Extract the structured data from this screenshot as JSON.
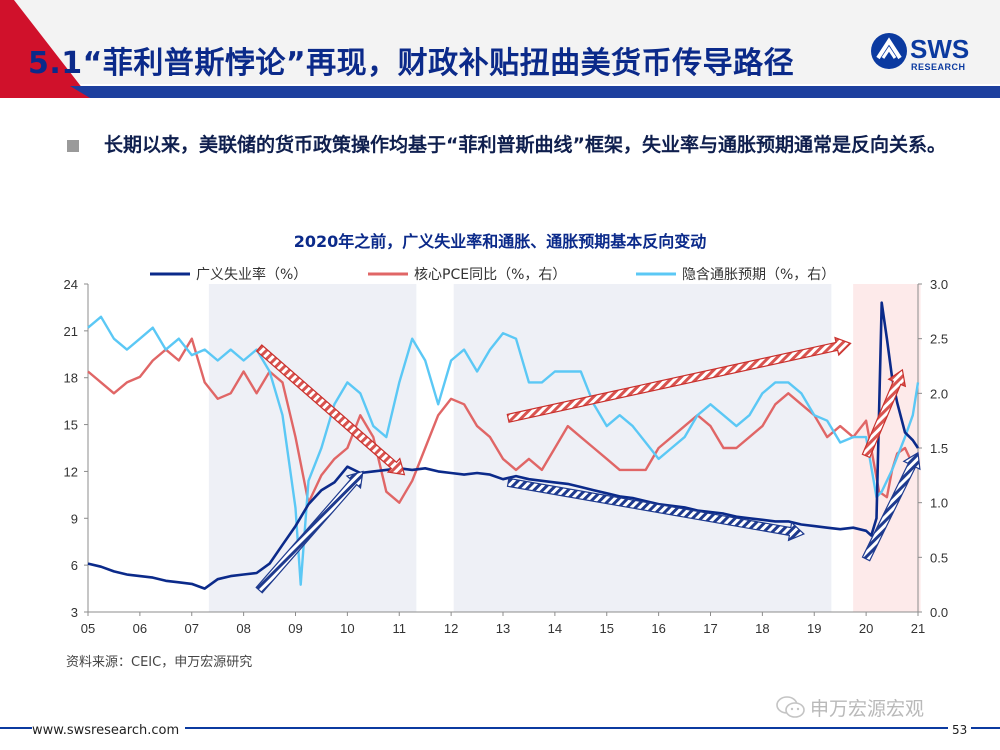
{
  "header": {
    "title": "5.1“菲利普斯悖论”再现，财政补贴扭曲美货币传导路径",
    "logo_word": "SWS",
    "logo_sub": "RESEARCH"
  },
  "bullet": {
    "text": "长期以来，美联储的货币政策操作均基于“菲利普斯曲线”框架，失业率与通胀预期通常是反向关系。"
  },
  "chart_data": {
    "type": "line",
    "title": "2020年之前，广义失业率和通胀、通胀预期基本反向变动",
    "x_ticks": [
      "05",
      "06",
      "07",
      "08",
      "09",
      "10",
      "11",
      "12",
      "13",
      "14",
      "15",
      "16",
      "17",
      "18",
      "19",
      "20",
      "21"
    ],
    "x_range": [
      2005,
      2021
    ],
    "y_left": {
      "ticks": [
        "24",
        "21",
        "18",
        "15",
        "12",
        "9",
        "6",
        "3"
      ],
      "range": [
        3,
        24
      ]
    },
    "y_right": {
      "ticks": [
        "3.0",
        "2.5",
        "2.0",
        "1.5",
        "1.0",
        "0.5",
        "0.0"
      ],
      "range": [
        0,
        3
      ]
    },
    "grid": false,
    "legend_position": "top",
    "series": [
      {
        "name": "广义失业率（%）",
        "axis": "left",
        "color": "#0b2a8a",
        "points": [
          [
            2005.0,
            6.1
          ],
          [
            2005.25,
            5.9
          ],
          [
            2005.5,
            5.6
          ],
          [
            2005.75,
            5.4
          ],
          [
            2006.0,
            5.3
          ],
          [
            2006.25,
            5.2
          ],
          [
            2006.5,
            5.0
          ],
          [
            2006.75,
            4.9
          ],
          [
            2007.0,
            4.8
          ],
          [
            2007.25,
            4.5
          ],
          [
            2007.5,
            5.1
          ],
          [
            2007.75,
            5.3
          ],
          [
            2008.0,
            5.4
          ],
          [
            2008.25,
            5.5
          ],
          [
            2008.5,
            6.1
          ],
          [
            2008.75,
            7.3
          ],
          [
            2009.0,
            8.5
          ],
          [
            2009.25,
            9.9
          ],
          [
            2009.5,
            10.8
          ],
          [
            2009.75,
            11.3
          ],
          [
            2010.0,
            12.3
          ],
          [
            2010.25,
            11.9
          ],
          [
            2010.5,
            12.0
          ],
          [
            2010.75,
            12.1
          ],
          [
            2011.0,
            12.2
          ],
          [
            2011.25,
            12.1
          ],
          [
            2011.5,
            12.2
          ],
          [
            2011.75,
            12.0
          ],
          [
            2012.0,
            11.9
          ],
          [
            2012.25,
            11.8
          ],
          [
            2012.5,
            11.9
          ],
          [
            2012.75,
            11.8
          ],
          [
            2013.0,
            11.5
          ],
          [
            2013.25,
            11.7
          ],
          [
            2013.5,
            11.5
          ],
          [
            2013.75,
            11.4
          ],
          [
            2014.0,
            11.3
          ],
          [
            2014.25,
            11.2
          ],
          [
            2014.5,
            11.0
          ],
          [
            2014.75,
            10.8
          ],
          [
            2015.0,
            10.6
          ],
          [
            2015.25,
            10.4
          ],
          [
            2015.5,
            10.3
          ],
          [
            2015.75,
            10.1
          ],
          [
            2016.0,
            9.9
          ],
          [
            2016.25,
            9.8
          ],
          [
            2016.5,
            9.7
          ],
          [
            2016.75,
            9.5
          ],
          [
            2017.0,
            9.4
          ],
          [
            2017.25,
            9.3
          ],
          [
            2017.5,
            9.1
          ],
          [
            2017.75,
            9.0
          ],
          [
            2018.0,
            8.9
          ],
          [
            2018.25,
            8.8
          ],
          [
            2018.5,
            8.8
          ],
          [
            2018.75,
            8.6
          ],
          [
            2019.0,
            8.5
          ],
          [
            2019.25,
            8.4
          ],
          [
            2019.5,
            8.3
          ],
          [
            2019.75,
            8.4
          ],
          [
            2020.0,
            8.2
          ],
          [
            2020.1,
            7.9
          ],
          [
            2020.2,
            9.0
          ],
          [
            2020.3,
            22.8
          ],
          [
            2020.4,
            20.5
          ],
          [
            2020.5,
            18.0
          ],
          [
            2020.6,
            16.4
          ],
          [
            2020.75,
            14.5
          ],
          [
            2020.9,
            14.0
          ],
          [
            2021.0,
            13.5
          ]
        ]
      },
      {
        "name": "核心PCE同比（%，右）",
        "axis": "right",
        "color": "#e06666",
        "points": [
          [
            2005.0,
            2.2
          ],
          [
            2005.25,
            2.1
          ],
          [
            2005.5,
            2.0
          ],
          [
            2005.75,
            2.1
          ],
          [
            2006.0,
            2.15
          ],
          [
            2006.25,
            2.3
          ],
          [
            2006.5,
            2.4
          ],
          [
            2006.75,
            2.3
          ],
          [
            2007.0,
            2.5
          ],
          [
            2007.25,
            2.1
          ],
          [
            2007.5,
            1.95
          ],
          [
            2007.75,
            2.0
          ],
          [
            2008.0,
            2.2
          ],
          [
            2008.25,
            2.0
          ],
          [
            2008.5,
            2.2
          ],
          [
            2008.75,
            2.1
          ],
          [
            2009.0,
            1.6
          ],
          [
            2009.25,
            1.0
          ],
          [
            2009.5,
            1.25
          ],
          [
            2009.75,
            1.4
          ],
          [
            2010.0,
            1.5
          ],
          [
            2010.25,
            1.8
          ],
          [
            2010.5,
            1.6
          ],
          [
            2010.75,
            1.1
          ],
          [
            2011.0,
            1.0
          ],
          [
            2011.25,
            1.2
          ],
          [
            2011.5,
            1.5
          ],
          [
            2011.75,
            1.8
          ],
          [
            2012.0,
            1.95
          ],
          [
            2012.25,
            1.9
          ],
          [
            2012.5,
            1.7
          ],
          [
            2012.75,
            1.6
          ],
          [
            2013.0,
            1.4
          ],
          [
            2013.25,
            1.3
          ],
          [
            2013.5,
            1.4
          ],
          [
            2013.75,
            1.3
          ],
          [
            2014.0,
            1.5
          ],
          [
            2014.25,
            1.7
          ],
          [
            2014.5,
            1.6
          ],
          [
            2014.75,
            1.5
          ],
          [
            2015.0,
            1.4
          ],
          [
            2015.25,
            1.3
          ],
          [
            2015.5,
            1.3
          ],
          [
            2015.75,
            1.3
          ],
          [
            2016.0,
            1.5
          ],
          [
            2016.25,
            1.6
          ],
          [
            2016.5,
            1.7
          ],
          [
            2016.75,
            1.8
          ],
          [
            2017.0,
            1.7
          ],
          [
            2017.25,
            1.5
          ],
          [
            2017.5,
            1.5
          ],
          [
            2017.75,
            1.6
          ],
          [
            2018.0,
            1.7
          ],
          [
            2018.25,
            1.9
          ],
          [
            2018.5,
            2.0
          ],
          [
            2018.75,
            1.9
          ],
          [
            2019.0,
            1.8
          ],
          [
            2019.25,
            1.6
          ],
          [
            2019.5,
            1.7
          ],
          [
            2019.75,
            1.6
          ],
          [
            2020.0,
            1.75
          ],
          [
            2020.25,
            1.1
          ],
          [
            2020.4,
            1.05
          ],
          [
            2020.5,
            1.3
          ],
          [
            2020.6,
            1.45
          ],
          [
            2020.75,
            1.5
          ],
          [
            2020.9,
            1.35
          ],
          [
            2021.0,
            1.45
          ]
        ]
      },
      {
        "name": "隐含通胀预期（%，右）",
        "axis": "right",
        "color": "#5bc8f5",
        "points": [
          [
            2005.0,
            2.6
          ],
          [
            2005.25,
            2.7
          ],
          [
            2005.5,
            2.5
          ],
          [
            2005.75,
            2.4
          ],
          [
            2006.0,
            2.5
          ],
          [
            2006.25,
            2.6
          ],
          [
            2006.5,
            2.4
          ],
          [
            2006.75,
            2.5
          ],
          [
            2007.0,
            2.35
          ],
          [
            2007.25,
            2.4
          ],
          [
            2007.5,
            2.3
          ],
          [
            2007.75,
            2.4
          ],
          [
            2008.0,
            2.3
          ],
          [
            2008.25,
            2.4
          ],
          [
            2008.5,
            2.2
          ],
          [
            2008.75,
            1.8
          ],
          [
            2009.0,
            0.95
          ],
          [
            2009.1,
            0.25
          ],
          [
            2009.25,
            1.2
          ],
          [
            2009.5,
            1.5
          ],
          [
            2009.75,
            1.9
          ],
          [
            2010.0,
            2.1
          ],
          [
            2010.25,
            2.0
          ],
          [
            2010.5,
            1.7
          ],
          [
            2010.75,
            1.6
          ],
          [
            2011.0,
            2.1
          ],
          [
            2011.25,
            2.5
          ],
          [
            2011.5,
            2.3
          ],
          [
            2011.75,
            1.9
          ],
          [
            2012.0,
            2.3
          ],
          [
            2012.25,
            2.4
          ],
          [
            2012.5,
            2.2
          ],
          [
            2012.75,
            2.4
          ],
          [
            2013.0,
            2.55
          ],
          [
            2013.25,
            2.5
          ],
          [
            2013.5,
            2.1
          ],
          [
            2013.75,
            2.1
          ],
          [
            2014.0,
            2.2
          ],
          [
            2014.25,
            2.2
          ],
          [
            2014.5,
            2.2
          ],
          [
            2014.75,
            1.9
          ],
          [
            2015.0,
            1.7
          ],
          [
            2015.25,
            1.8
          ],
          [
            2015.5,
            1.7
          ],
          [
            2015.75,
            1.55
          ],
          [
            2016.0,
            1.4
          ],
          [
            2016.25,
            1.5
          ],
          [
            2016.5,
            1.6
          ],
          [
            2016.75,
            1.8
          ],
          [
            2017.0,
            1.9
          ],
          [
            2017.25,
            1.8
          ],
          [
            2017.5,
            1.7
          ],
          [
            2017.75,
            1.8
          ],
          [
            2018.0,
            2.0
          ],
          [
            2018.25,
            2.1
          ],
          [
            2018.5,
            2.1
          ],
          [
            2018.75,
            2.0
          ],
          [
            2019.0,
            1.8
          ],
          [
            2019.25,
            1.75
          ],
          [
            2019.5,
            1.55
          ],
          [
            2019.75,
            1.6
          ],
          [
            2020.0,
            1.6
          ],
          [
            2020.2,
            1.05
          ],
          [
            2020.3,
            1.1
          ],
          [
            2020.5,
            1.3
          ],
          [
            2020.75,
            1.6
          ],
          [
            2020.9,
            1.8
          ],
          [
            2021.0,
            2.1
          ]
        ]
      }
    ],
    "shaded_periods": [
      {
        "from": 2007.33,
        "to": 2011.33,
        "color": "#eef0f6"
      },
      {
        "from": 2012.05,
        "to": 2019.33,
        "color": "#eef0f6"
      },
      {
        "from": 2019.75,
        "to": 2021.05,
        "color": "#fdeaea"
      }
    ],
    "trend_arrows": [
      {
        "from": [
          2008.3,
          19.9
        ],
        "to": [
          2011.1,
          11.8
        ],
        "axis": "left",
        "style": "red"
      },
      {
        "from": [
          2008.3,
          4.4
        ],
        "to": [
          2010.3,
          12.0
        ],
        "axis": "left",
        "style": "navy"
      },
      {
        "from": [
          2013.1,
          15.4
        ],
        "to": [
          2019.7,
          20.2
        ],
        "axis": "left",
        "style": "red"
      },
      {
        "from": [
          2013.1,
          11.3
        ],
        "to": [
          2018.8,
          8.0
        ],
        "axis": "left",
        "style": "navy"
      },
      {
        "from": [
          2020.0,
          13.0
        ],
        "to": [
          2020.7,
          18.5
        ],
        "axis": "left",
        "style": "red"
      },
      {
        "from": [
          2020.0,
          6.4
        ],
        "to": [
          2021.0,
          13.2
        ],
        "axis": "left",
        "style": "navy"
      }
    ]
  },
  "source": "资料来源：CEIC，申万宏源研究",
  "watermark": "申万宏源宏观",
  "footer": {
    "url": "www.swsresearch.com",
    "page": "53"
  }
}
